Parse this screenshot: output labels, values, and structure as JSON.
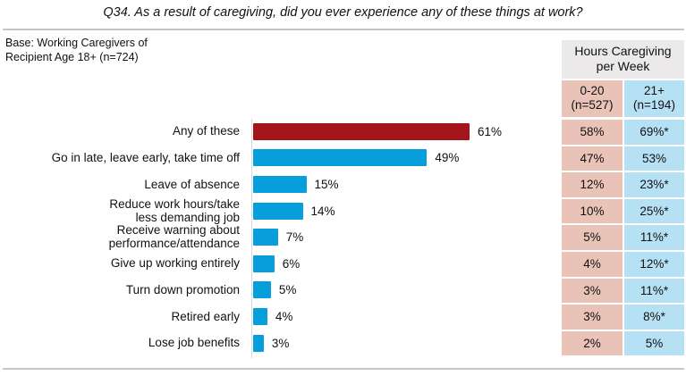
{
  "title": "Q34. As a result of caregiving, did you ever experience any of these things at work?",
  "base_line1": "Base: Working Caregivers of",
  "base_line2": "Recipient Age 18+ (n=724)",
  "colors": {
    "highlight": "#a6141b",
    "bar": "#079fdb",
    "col_low": "#e9c3b8",
    "col_high": "#b6e0f3",
    "header": "#ebe9e9"
  },
  "table": {
    "header_line1": "Hours Caregiving",
    "header_line2": "per Week",
    "col1_line1": "0-20",
    "col1_line2": "(n=527)",
    "col2_line1": "21+",
    "col2_line2": "(n=194)"
  },
  "chart_data": {
    "type": "bar",
    "orientation": "horizontal",
    "title": "Q34. As a result of caregiving, did you ever experience any of these things at work?",
    "xlabel": "",
    "ylabel": "",
    "xlim": [
      0,
      100
    ],
    "grid": false,
    "unit": "%",
    "categories": [
      [
        "Any of these"
      ],
      [
        "Go in late, leave early, take time off"
      ],
      [
        "Leave of absence"
      ],
      [
        "Reduce work hours/take",
        "less demanding job"
      ],
      [
        "Receive warning about",
        "performance/attendance"
      ],
      [
        "Give up working entirely"
      ],
      [
        "Turn down promotion"
      ],
      [
        "Retired early"
      ],
      [
        "Lose job benefits"
      ]
    ],
    "values": [
      61,
      49,
      15,
      14,
      7,
      6,
      5,
      4,
      3
    ],
    "labels": [
      "61%",
      "49%",
      "15%",
      "14%",
      "7%",
      "6%",
      "5%",
      "4%",
      "3%"
    ],
    "highlight_index": 0,
    "table_series": [
      {
        "name": "0-20 (n=527)",
        "values": [
          "58%",
          "47%",
          "12%",
          "10%",
          "5%",
          "4%",
          "3%",
          "3%",
          "2%"
        ]
      },
      {
        "name": "21+ (n=194)",
        "values": [
          "69%*",
          "53%",
          "23%*",
          "25%*",
          "11%*",
          "12%*",
          "11%*",
          "8%*",
          "5%"
        ]
      }
    ]
  }
}
